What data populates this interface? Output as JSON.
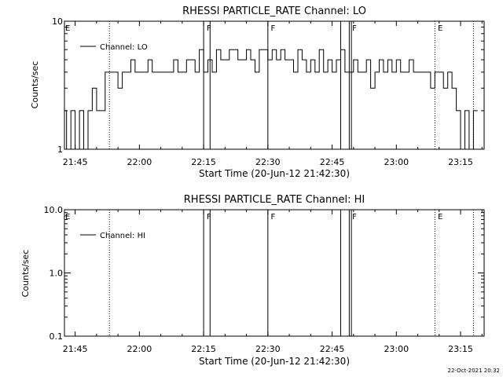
{
  "footer_timestamp": "22-Oct-2021 20:32",
  "chart_data": [
    {
      "type": "line",
      "title": "RHESSI PARTICLE_RATE Channel: LO",
      "xlabel": "Start Time (20-Jun-12 21:42:30)",
      "ylabel": "Counts/sec",
      "yscale": "log",
      "ylim": [
        1,
        10
      ],
      "y_ticks": [
        "1",
        "10"
      ],
      "xlim": [
        "21:42:30",
        "23:20:30"
      ],
      "x_ticks": [
        "21:45",
        "22:00",
        "22:15",
        "22:30",
        "22:45",
        "23:00",
        "23:15"
      ],
      "legend": {
        "label": "Channel: LO",
        "position": "top-left"
      },
      "series": [
        {
          "name": "Channel: LO",
          "x": [
            "21:42:30",
            "21:43",
            "21:44",
            "21:45",
            "21:46",
            "21:47",
            "21:48",
            "21:49",
            "21:50",
            "21:51",
            "21:52",
            "21:53",
            "21:54",
            "21:55",
            "21:56",
            "21:57",
            "21:58",
            "21:59",
            "22:00",
            "22:01",
            "22:02",
            "22:03",
            "22:04",
            "22:05",
            "22:06",
            "22:07",
            "22:08",
            "22:09",
            "22:10",
            "22:11",
            "22:12",
            "22:13",
            "22:14",
            "22:15",
            "22:16",
            "22:17",
            "22:18",
            "22:19",
            "22:20",
            "22:21",
            "22:22",
            "22:23",
            "22:24",
            "22:25",
            "22:26",
            "22:27",
            "22:28",
            "22:29",
            "22:30",
            "22:31",
            "22:32",
            "22:33",
            "22:34",
            "22:35",
            "22:36",
            "22:37",
            "22:38",
            "22:39",
            "22:40",
            "22:41",
            "22:42",
            "22:43",
            "22:44",
            "22:45",
            "22:46",
            "22:47",
            "22:48",
            "22:49",
            "22:50",
            "22:51",
            "22:52",
            "22:53",
            "22:54",
            "22:55",
            "22:56",
            "22:57",
            "22:58",
            "22:59",
            "23:00",
            "23:01",
            "23:02",
            "23:03",
            "23:04",
            "23:05",
            "23:06",
            "23:07",
            "23:08",
            "23:09",
            "23:10",
            "23:11",
            "23:12",
            "23:13",
            "23:14",
            "23:15",
            "23:16",
            "23:17",
            "23:18"
          ],
          "values": [
            2,
            1,
            2,
            1,
            2,
            1,
            2,
            3,
            2,
            2,
            4,
            4,
            4,
            3,
            4,
            4,
            5,
            4,
            4,
            4,
            5,
            4,
            4,
            4,
            4,
            4,
            5,
            4,
            4,
            5,
            5,
            4,
            6,
            4,
            5,
            4,
            6,
            5,
            5,
            6,
            6,
            5,
            5,
            6,
            5,
            4,
            6,
            6,
            5,
            6,
            5,
            6,
            5,
            5,
            4,
            6,
            5,
            4,
            5,
            4,
            6,
            4,
            5,
            4,
            5,
            6,
            4,
            4,
            5,
            4,
            4,
            5,
            3,
            4,
            5,
            4,
            5,
            4,
            5,
            4,
            4,
            5,
            4,
            4,
            4,
            4,
            3,
            4,
            4,
            3,
            4,
            3,
            2,
            1,
            2,
            1,
            2
          ]
        }
      ],
      "annotations": [
        {
          "text": "E",
          "x": "21:42:30"
        },
        {
          "text": "F",
          "x": "22:15:30"
        },
        {
          "text": "F",
          "x": "22:30:30"
        },
        {
          "text": "F",
          "x": "22:49:30"
        },
        {
          "text": "E",
          "x": "23:09:30"
        }
      ],
      "vlines_solid": [
        "22:15:00",
        "22:16:30",
        "22:30:00",
        "22:47:00",
        "22:49:00",
        "22:49:30"
      ],
      "vlines_dotted": [
        "21:53:00",
        "23:09:00",
        "23:18:00"
      ]
    },
    {
      "type": "line",
      "title": "RHESSI PARTICLE_RATE Channel: HI",
      "xlabel": "Start Time (20-Jun-12 21:42:30)",
      "ylabel": "Counts/sec",
      "yscale": "log",
      "ylim": [
        0.1,
        10
      ],
      "y_ticks": [
        "0.1",
        "1.0",
        "10.0"
      ],
      "xlim": [
        "21:42:30",
        "23:20:30"
      ],
      "x_ticks": [
        "21:45",
        "22:00",
        "22:15",
        "22:30",
        "22:45",
        "23:00",
        "23:15"
      ],
      "legend": {
        "label": "Channel: HI",
        "position": "top-left"
      },
      "series": [
        {
          "name": "Channel: HI",
          "x": [],
          "values": []
        }
      ],
      "annotations": [
        {
          "text": "E",
          "x": "21:42:30"
        },
        {
          "text": "F",
          "x": "22:15:30"
        },
        {
          "text": "F",
          "x": "22:30:30"
        },
        {
          "text": "F",
          "x": "22:49:30"
        },
        {
          "text": "E",
          "x": "23:09:30"
        }
      ],
      "vlines_solid": [
        "22:15:00",
        "22:16:30",
        "22:30:00",
        "22:47:00",
        "22:49:00",
        "22:49:30"
      ],
      "vlines_dotted": [
        "21:53:00",
        "23:09:00",
        "23:18:00"
      ]
    }
  ]
}
